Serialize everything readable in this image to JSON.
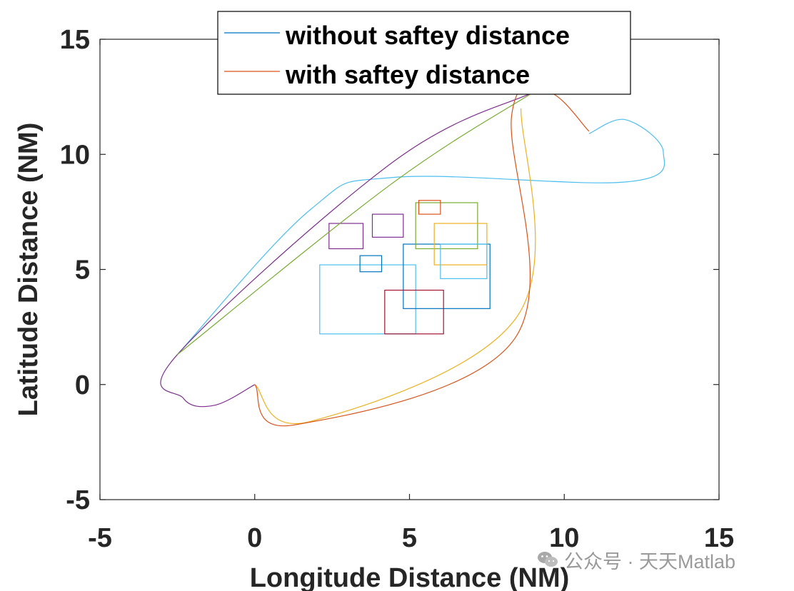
{
  "chart_data": {
    "type": "line",
    "title": "",
    "xlabel": "Longitude Distance (NM)",
    "ylabel": "Latitude Distance (NM)",
    "xlim": [
      -5,
      15
    ],
    "ylim": [
      -5,
      15
    ],
    "xticks": [
      -5,
      0,
      5,
      10,
      15
    ],
    "yticks": [
      -5,
      0,
      5,
      10,
      15
    ],
    "grid": false,
    "legend_position": "top",
    "legend": [
      {
        "label": "without saftey distance",
        "color": "#0072BD"
      },
      {
        "label": "with saftey distance",
        "color": "#D95319"
      }
    ],
    "series": [
      {
        "color": "#4DBEEE",
        "points": [
          [
            -2.5,
            1.3
          ],
          [
            1.8,
            7.6
          ],
          [
            4.5,
            9.0
          ],
          [
            12.0,
            8.8
          ],
          [
            13.2,
            10.1
          ],
          [
            12.0,
            11.5
          ],
          [
            10.8,
            10.9
          ]
        ]
      },
      {
        "color": "#7E2F8E",
        "points": [
          [
            9.0,
            12.7
          ],
          [
            4.5,
            9.7
          ],
          [
            -2.5,
            1.3
          ],
          [
            -2.3,
            -0.6
          ],
          [
            -1.3,
            -0.9
          ],
          [
            0.0,
            0.0
          ]
        ]
      },
      {
        "color": "#77AC30",
        "points": [
          [
            -2.5,
            1.3
          ],
          [
            4.4,
            8.7
          ],
          [
            9.0,
            12.7
          ]
        ]
      },
      {
        "color": "#EDB120",
        "points": [
          [
            8.6,
            12.0
          ],
          [
            8.5,
            3.0
          ],
          [
            1.8,
            -1.6
          ],
          [
            0.0,
            0.0
          ]
        ]
      },
      {
        "color": "#D95319",
        "points": [
          [
            0.0,
            0.0
          ],
          [
            1.3,
            -1.75
          ],
          [
            8.4,
            2.0
          ],
          [
            8.3,
            11.7
          ],
          [
            9.5,
            12.7
          ],
          [
            10.8,
            11.0
          ]
        ]
      }
    ],
    "rectangles": [
      {
        "color": "#4DBEEE",
        "x": [
          2.1,
          5.2
        ],
        "y": [
          2.2,
          5.2
        ]
      },
      {
        "color": "#0072BD",
        "x": [
          3.4,
          4.1
        ],
        "y": [
          4.9,
          5.6
        ]
      },
      {
        "color": "#7E2F8E",
        "x": [
          2.4,
          3.5
        ],
        "y": [
          5.9,
          7.0
        ]
      },
      {
        "color": "#7E2F8E",
        "x": [
          3.8,
          4.8
        ],
        "y": [
          6.4,
          7.4
        ]
      },
      {
        "color": "#0072BD",
        "x": [
          4.8,
          7.6
        ],
        "y": [
          3.3,
          6.1
        ]
      },
      {
        "color": "#77AC30",
        "x": [
          5.2,
          7.2
        ],
        "y": [
          5.9,
          7.9
        ]
      },
      {
        "color": "#D95319",
        "x": [
          5.3,
          6.0
        ],
        "y": [
          7.4,
          8.0
        ]
      },
      {
        "color": "#EDB120",
        "x": [
          5.8,
          7.5
        ],
        "y": [
          5.2,
          7.0
        ]
      },
      {
        "color": "#4DBEEE",
        "x": [
          6.0,
          7.5
        ],
        "y": [
          4.6,
          6.1
        ]
      },
      {
        "color": "#A2142F",
        "x": [
          4.2,
          6.1
        ],
        "y": [
          2.2,
          4.1
        ]
      }
    ]
  },
  "watermark": {
    "icon": "wechat-icon",
    "text": "公众号 · 天天Matlab"
  }
}
